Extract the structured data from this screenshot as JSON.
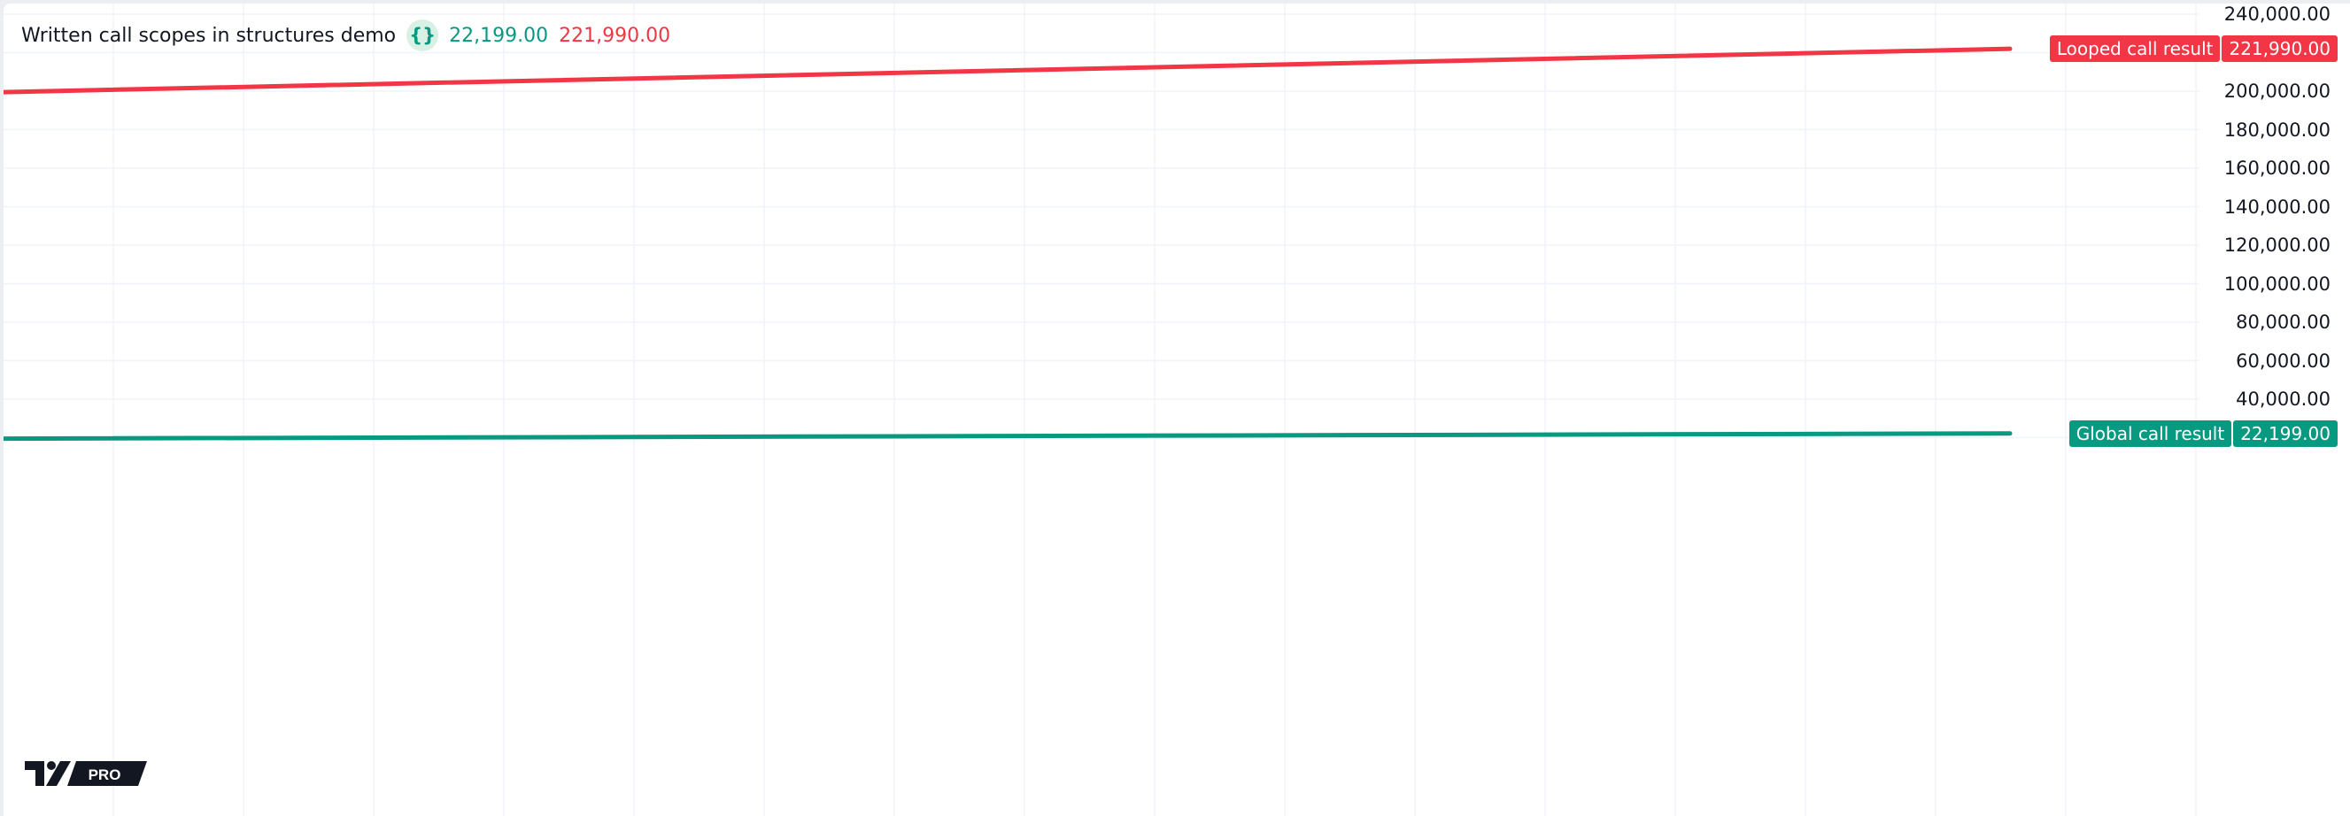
{
  "legend": {
    "title": "Written call scopes in structures demo",
    "icon": "curly-braces-icon",
    "icon_text": "{}",
    "value_global": "22,199.00",
    "value_looped": "221,990.00"
  },
  "colors": {
    "global": "#089981",
    "looped": "#f23645",
    "grid": "#f0f3fa",
    "text": "#131722"
  },
  "logo": {
    "text": "PRO",
    "name": "tradingview-logo"
  },
  "chart_data": {
    "type": "line",
    "title": "Written call scopes in structures demo",
    "ylim": [
      10000,
      250000
    ],
    "yticks": [
      40000,
      60000,
      80000,
      100000,
      120000,
      140000,
      160000,
      180000,
      200000,
      240000
    ],
    "ytick_labels": [
      "40,000.00",
      "60,000.00",
      "80,000.00",
      "100,000.00",
      "120,000.00",
      "140,000.00",
      "160,000.00",
      "180,000.00",
      "200,000.00",
      "240,000.00"
    ],
    "grid": true,
    "series": [
      {
        "name": "Looped call result",
        "start": 199500,
        "end": 221990,
        "last_label": "221,990.00",
        "color": "#f23645"
      },
      {
        "name": "Global call result",
        "start": 19500,
        "end": 22199,
        "last_label": "22,199.00",
        "color": "#089981"
      }
    ]
  }
}
